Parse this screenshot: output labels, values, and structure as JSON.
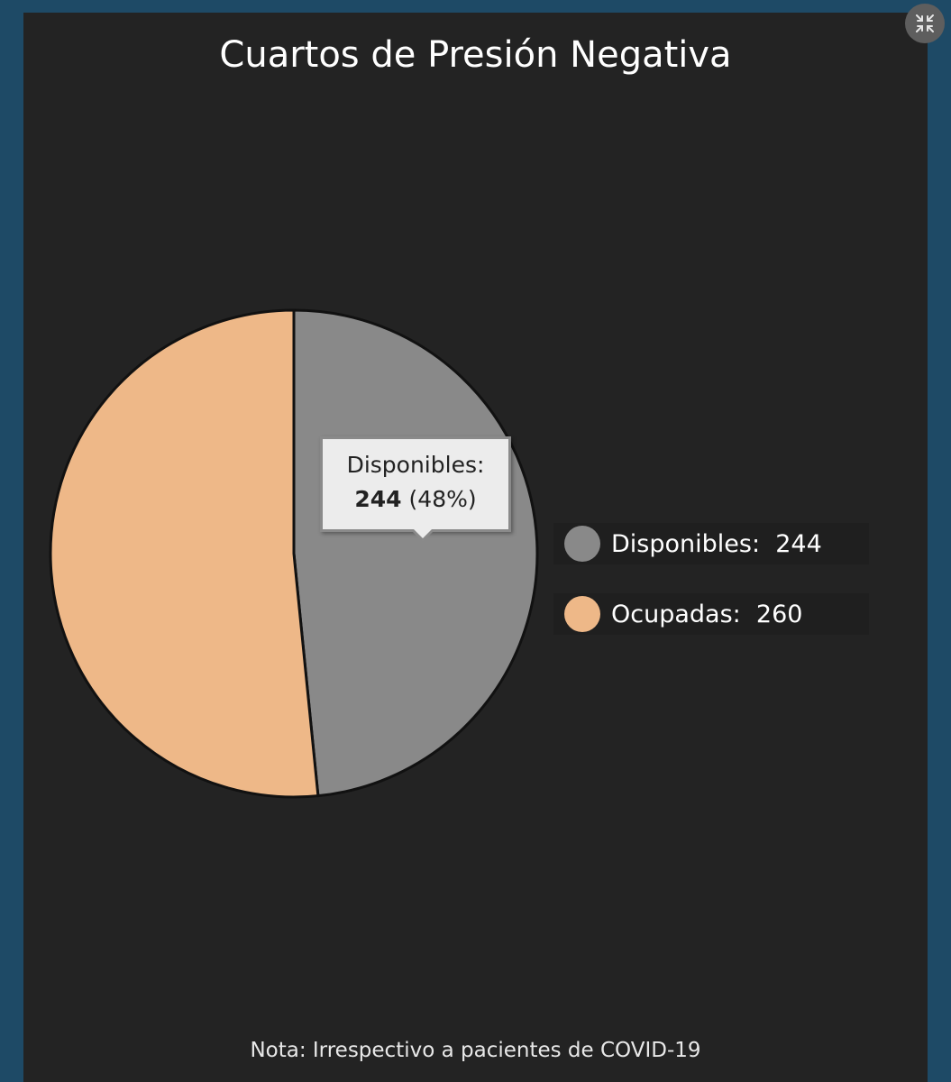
{
  "chart_data": {
    "type": "pie",
    "title": "Cuartos de Presión Negativa",
    "slices": [
      {
        "label": "Disponibles",
        "value": 244,
        "percent": 48,
        "color": "#898989"
      },
      {
        "label": "Ocupadas",
        "value": 260,
        "color": "#eeb888"
      }
    ],
    "legend_position": "right",
    "tooltip": {
      "label": "Disponibles:",
      "value": "244",
      "percent": "(48%)"
    },
    "note": "Nota: Irrespectivo a pacientes de COVID-19"
  },
  "legend": {
    "items": [
      {
        "text": "Disponibles:  244",
        "color": "#898989"
      },
      {
        "text": "Ocupadas:  260",
        "color": "#eeb888"
      }
    ]
  },
  "toolbar": {
    "fullscreen_icon": "collapse-arrows-icon"
  }
}
